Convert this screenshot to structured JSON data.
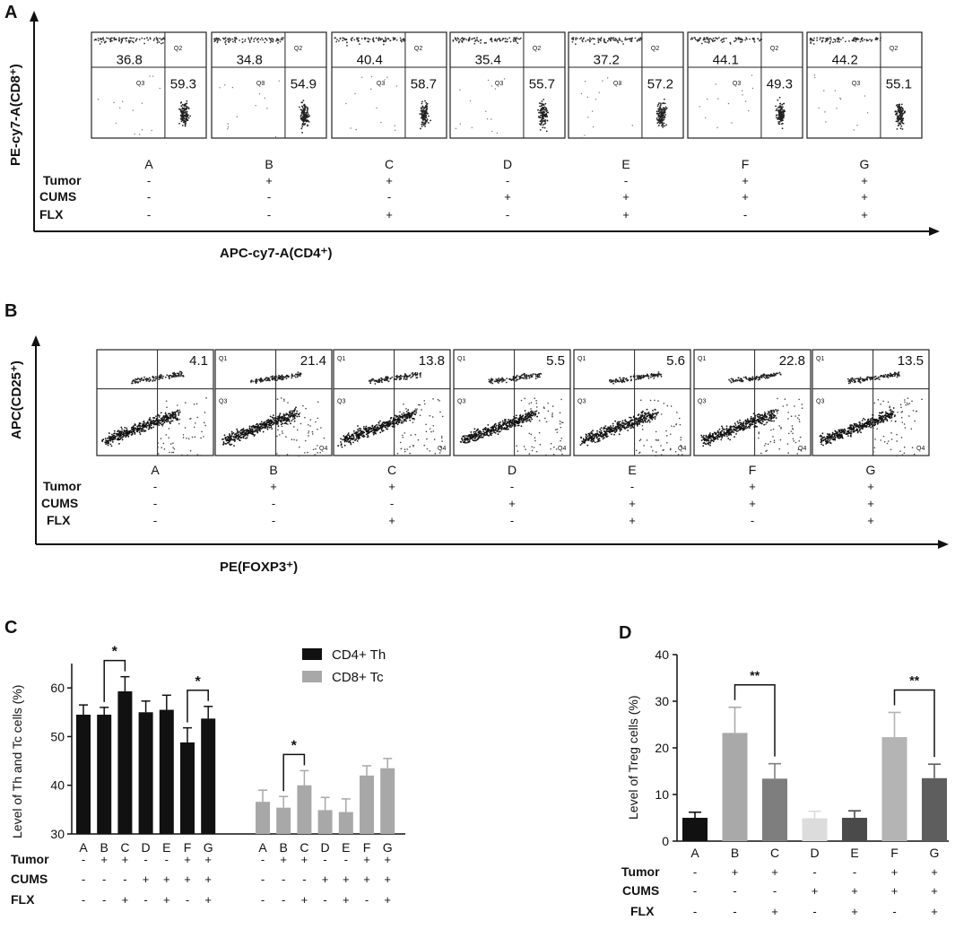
{
  "panel_a": {
    "letter": "A",
    "y_axis_label": "PE-cy7-A(CD8⁺)",
    "x_axis_label": "APC-cy7-A(CD4⁺)",
    "plots": [
      {
        "group": "A",
        "q1": "36.8",
        "q4": "59.3",
        "quad_top": "Q2",
        "quad_bottom": "Q3"
      },
      {
        "group": "B",
        "q1": "34.8",
        "q4": "54.9",
        "quad_top": "Q2",
        "quad_bottom": "Q3"
      },
      {
        "group": "C",
        "q1": "40.4",
        "q4": "58.7",
        "quad_top": "Q2",
        "quad_bottom": "Q3"
      },
      {
        "group": "D",
        "q1": "35.4",
        "q4": "55.7",
        "quad_top": "Q2",
        "quad_bottom": "Q3"
      },
      {
        "group": "E",
        "q1": "37.2",
        "q4": "57.2",
        "quad_top": "Q2",
        "quad_bottom": "Q3"
      },
      {
        "group": "F",
        "q1": "44.1",
        "q4": "49.3",
        "quad_top": "Q2",
        "quad_bottom": "Q3"
      },
      {
        "group": "G",
        "q1": "44.2",
        "q4": "55.1",
        "quad_top": "Q2",
        "quad_bottom": "Q3"
      }
    ],
    "conditions": {
      "labels": [
        "Tumor",
        "CUMS",
        "FLX"
      ],
      "tumor": [
        "-",
        "+",
        "+",
        "-",
        "-",
        "+",
        "+"
      ],
      "cums": [
        "-",
        "-",
        "-",
        "+",
        "+",
        "+",
        "+"
      ],
      "flx": [
        "-",
        "-",
        "+",
        "-",
        "+",
        "-",
        "+"
      ]
    }
  },
  "panel_b": {
    "letter": "B",
    "y_axis_label": "APC(CD25⁺)",
    "x_axis_label": "PE(FOXP3⁺)",
    "plots": [
      {
        "group": "A",
        "q2": "4.1"
      },
      {
        "group": "B",
        "q2": "21.4"
      },
      {
        "group": "C",
        "q2": "13.8"
      },
      {
        "group": "D",
        "q2": "5.5"
      },
      {
        "group": "E",
        "q2": "5.6"
      },
      {
        "group": "F",
        "q2": "22.8"
      },
      {
        "group": "G",
        "q2": "13.5"
      }
    ],
    "quad_labels": [
      "Q1",
      "Q3",
      "Q4"
    ],
    "conditions": {
      "labels": [
        "Tumor",
        "CUMS",
        "FLX"
      ],
      "tumor": [
        "-",
        "+",
        "+",
        "-",
        "-",
        "+",
        "+"
      ],
      "cums": [
        "-",
        "-",
        "-",
        "+",
        "+",
        "+",
        "+"
      ],
      "flx": [
        "-",
        "-",
        "+",
        "-",
        "+",
        "-",
        "+"
      ]
    }
  },
  "chart_data": [
    {
      "panel": "C",
      "type": "bar",
      "ylabel": "Level of Th and Tc cells (%)",
      "ylim": [
        30,
        65
      ],
      "yticks": [
        30,
        40,
        50,
        60
      ],
      "categories": [
        "A",
        "B",
        "C",
        "D",
        "E",
        "F",
        "G"
      ],
      "series": [
        {
          "name": "CD4+ Th",
          "color": "#111111",
          "values": [
            54.5,
            54.5,
            59.3,
            55.0,
            55.5,
            48.8,
            53.7
          ],
          "errors": [
            2.0,
            1.5,
            3.0,
            2.3,
            3.0,
            3.0,
            2.5
          ]
        },
        {
          "name": "CD8+ Tc",
          "color": "#a8a8a8",
          "values": [
            36.6,
            35.4,
            40.0,
            34.9,
            34.5,
            42.0,
            43.5
          ],
          "errors": [
            2.4,
            2.3,
            3.0,
            2.6,
            2.7,
            2.0,
            2.0
          ]
        }
      ],
      "significance": [
        {
          "series": 0,
          "from": "B",
          "to": "C",
          "label": "*"
        },
        {
          "series": 0,
          "from": "F",
          "to": "G",
          "label": "*"
        },
        {
          "series": 1,
          "from": "B",
          "to": "C",
          "label": "*"
        }
      ],
      "conditions": {
        "labels": [
          "Tumor",
          "CUMS",
          "FLX"
        ],
        "tumor": [
          "-",
          "+",
          "+",
          "-",
          "-",
          "+",
          "+"
        ],
        "cums": [
          "-",
          "-",
          "-",
          "+",
          "+",
          "+",
          "+"
        ],
        "flx": [
          "-",
          "-",
          "+",
          "-",
          "+",
          "-",
          "+"
        ]
      },
      "legend_position": "top-right"
    },
    {
      "panel": "D",
      "type": "bar",
      "ylabel": "Level of Treg cells (%)",
      "ylim": [
        0,
        40
      ],
      "yticks": [
        0,
        10,
        20,
        30,
        40
      ],
      "categories": [
        "A",
        "B",
        "C",
        "D",
        "E",
        "F",
        "G"
      ],
      "values": [
        5.0,
        23.2,
        13.4,
        4.9,
        5.0,
        22.3,
        13.5
      ],
      "errors": [
        1.2,
        5.5,
        3.2,
        1.5,
        1.5,
        5.3,
        3.0
      ],
      "colors": [
        "#111111",
        "#a9a9a9",
        "#7e7e7e",
        "#dcdcdc",
        "#4a4a4a",
        "#b4b4b4",
        "#5e5e5e"
      ],
      "significance": [
        {
          "from": "B",
          "to": "C",
          "label": "**"
        },
        {
          "from": "F",
          "to": "G",
          "label": "**"
        }
      ],
      "conditions": {
        "labels": [
          "Tumor",
          "CUMS",
          "FLX"
        ],
        "tumor": [
          "-",
          "+",
          "+",
          "-",
          "-",
          "+",
          "+"
        ],
        "cums": [
          "-",
          "-",
          "-",
          "+",
          "+",
          "+",
          "+"
        ],
        "flx": [
          "-",
          "-",
          "+",
          "-",
          "+",
          "-",
          "+"
        ]
      }
    }
  ]
}
